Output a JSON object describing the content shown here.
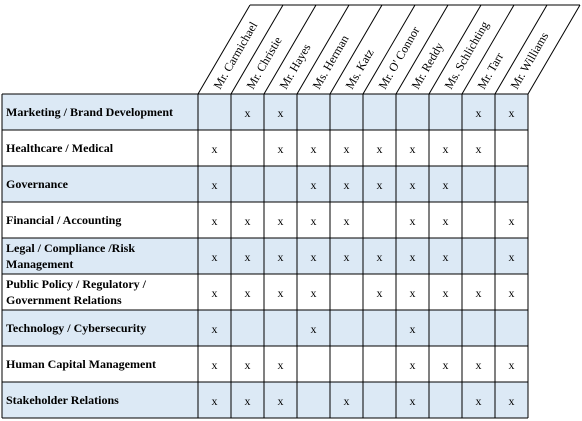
{
  "table": {
    "columns": [
      "Mr. Carmichael",
      "Mr. Christie",
      "Mr. Hayes",
      "Ms. Herman",
      "Ms. Katz",
      "Mr. O' Connor",
      "Mr. Reddy",
      "Ms. Schlichting",
      "Mr. Tarr",
      "Mr. Williams"
    ],
    "rows": [
      {
        "label": [
          "Marketing / Brand Development"
        ],
        "cells": [
          null,
          "x",
          "x",
          null,
          null,
          null,
          null,
          null,
          "x",
          "x"
        ]
      },
      {
        "label": [
          "Healthcare / Medical"
        ],
        "cells": [
          "x",
          null,
          "x",
          "x",
          "x",
          "x",
          "x",
          "x",
          "x",
          null
        ]
      },
      {
        "label": [
          "Governance"
        ],
        "cells": [
          "x",
          null,
          null,
          "x",
          "x",
          "x",
          "x",
          "x",
          null,
          null
        ]
      },
      {
        "label": [
          "Financial / Accounting"
        ],
        "cells": [
          "x",
          "x",
          "x",
          "x",
          "x",
          null,
          "x",
          "x",
          null,
          "x"
        ]
      },
      {
        "label": [
          "Legal / Compliance /Risk",
          "Management"
        ],
        "cells": [
          "x",
          "x",
          "x",
          "x",
          "x",
          "x",
          "x",
          "x",
          null,
          "x"
        ]
      },
      {
        "label": [
          "Public Policy / Regulatory /",
          "Government Relations"
        ],
        "cells": [
          "x",
          "x",
          "x",
          "x",
          null,
          "x",
          "x",
          "x",
          "x",
          "x"
        ]
      },
      {
        "label": [
          "Technology / Cybersecurity"
        ],
        "cells": [
          "x",
          null,
          null,
          "x",
          null,
          null,
          "x",
          null,
          null,
          null
        ]
      },
      {
        "label": [
          "Human Capital Management"
        ],
        "cells": [
          "x",
          "x",
          "x",
          null,
          null,
          null,
          "x",
          "x",
          "x",
          "x"
        ]
      },
      {
        "label": [
          "Stakeholder Relations"
        ],
        "cells": [
          "x",
          "x",
          "x",
          null,
          "x",
          null,
          "x",
          null,
          "x",
          "x"
        ]
      }
    ]
  }
}
